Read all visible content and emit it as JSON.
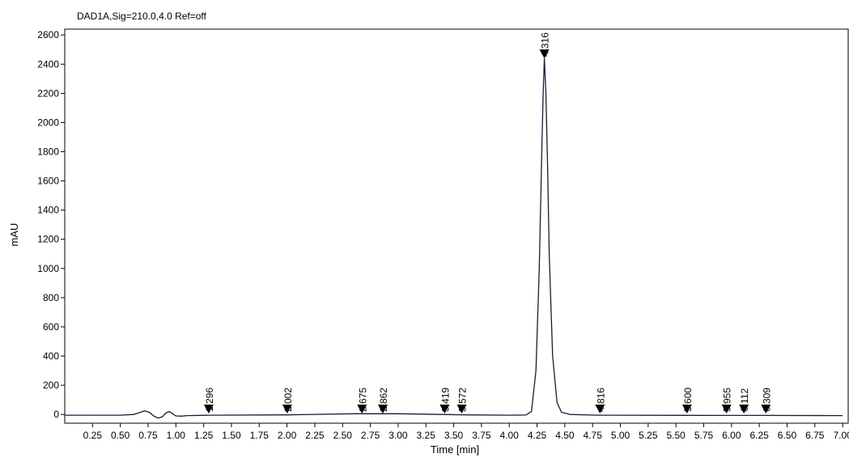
{
  "chart_data": {
    "type": "line",
    "title": "DAD1A,Sig=210.0,4.0  Ref=off",
    "xlabel": "Time [min]",
    "ylabel": "mAU",
    "xlim": [
      0.0,
      7.05
    ],
    "ylim": [
      -60,
      2640
    ],
    "x_ticks": [
      0.25,
      0.5,
      0.75,
      1.0,
      1.25,
      1.5,
      1.75,
      2.0,
      2.25,
      2.5,
      2.75,
      3.0,
      3.25,
      3.5,
      3.75,
      4.0,
      4.25,
      4.5,
      4.75,
      5.0,
      5.25,
      5.5,
      5.75,
      6.0,
      6.25,
      6.5,
      6.75,
      7.0
    ],
    "x_tick_labels": [
      "0.25",
      "0.50",
      "0.75",
      "1.00",
      "1.25",
      "1.50",
      "1.75",
      "2.00",
      "2.25",
      "2.50",
      "2.75",
      "3.00",
      "3.25",
      "3.50",
      "3.75",
      "4.00",
      "4.25",
      "4.50",
      "4.75",
      "5.00",
      "5.25",
      "5.50",
      "5.75",
      "6.00",
      "6.25",
      "6.50",
      "6.75",
      "7.00"
    ],
    "y_ticks": [
      0,
      200,
      400,
      600,
      800,
      1000,
      1200,
      1400,
      1600,
      1800,
      2000,
      2200,
      2400,
      2600
    ],
    "y_tick_labels": [
      "0",
      "200",
      "400",
      "600",
      "800",
      "1000",
      "1200",
      "1400",
      "1600",
      "1800",
      "2000",
      "2200",
      "2400",
      "2600"
    ],
    "grid": false,
    "series": [
      {
        "x": [
          0.0,
          0.5,
          0.62,
          0.68,
          0.72,
          0.76,
          0.8,
          0.84,
          0.88,
          0.91,
          0.94,
          0.97,
          1.0,
          1.05,
          1.1,
          1.3,
          2.0,
          2.6,
          3.0,
          3.4,
          3.6,
          4.0,
          4.15,
          4.2,
          4.24,
          4.27,
          4.29,
          4.305,
          4.316,
          4.33,
          4.345,
          4.36,
          4.39,
          4.43,
          4.47,
          4.55,
          4.8,
          5.6,
          6.3,
          7.0
        ],
        "y": [
          -5,
          -5,
          0,
          15,
          25,
          15,
          -10,
          -25,
          -15,
          10,
          20,
          5,
          -10,
          -12,
          -8,
          -5,
          -3,
          5,
          5,
          0,
          -3,
          -5,
          -4,
          20,
          300,
          1000,
          1700,
          2200,
          2440,
          2200,
          1700,
          1100,
          400,
          80,
          15,
          0,
          -5,
          -6,
          -7,
          -8
        ],
        "color": "#1a1a3a"
      }
    ],
    "peak_markers": [
      {
        "x": 1.296,
        "label": "1.296"
      },
      {
        "x": 2.002,
        "label": "2.002"
      },
      {
        "x": 2.675,
        "label": "2.675"
      },
      {
        "x": 2.862,
        "label": "2.862"
      },
      {
        "x": 3.419,
        "label": "3.419"
      },
      {
        "x": 3.572,
        "label": "3.572"
      },
      {
        "x": 4.316,
        "label": "4.316"
      },
      {
        "x": 4.816,
        "label": "4.816"
      },
      {
        "x": 5.6,
        "label": "5.600"
      },
      {
        "x": 5.955,
        "label": "5.955"
      },
      {
        "x": 6.112,
        "label": "6.112"
      },
      {
        "x": 6.309,
        "label": "6.309"
      }
    ]
  }
}
